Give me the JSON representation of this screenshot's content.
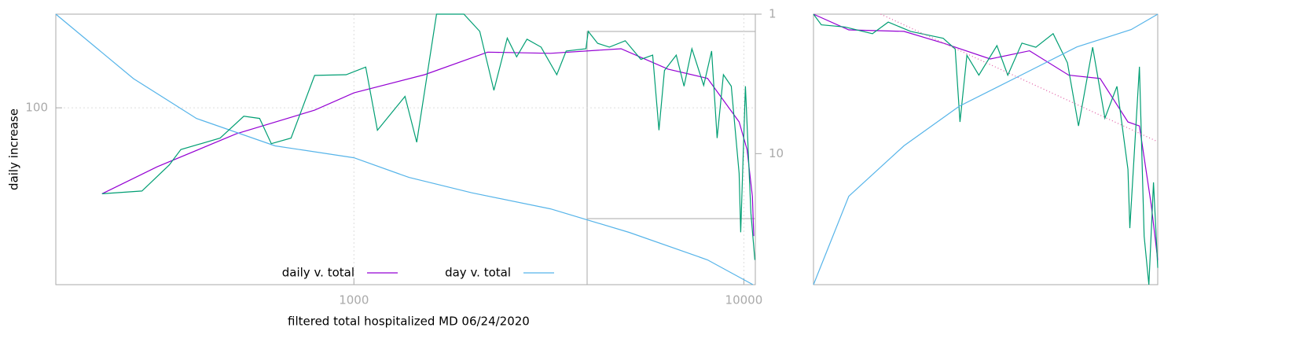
{
  "chart_data": [
    {
      "type": "line",
      "xlabel": "filtered total hospitalized MD 06/24/2020",
      "ylabel": "daily increase",
      "xscale": "log",
      "yscale": "log",
      "y2scale": "log",
      "xlim": [
        172,
        10700
      ],
      "ylim": [
        17.2,
        254
      ],
      "y2lim": [
        87,
        1
      ],
      "xticks": [
        1000,
        10000
      ],
      "yticks": [
        100
      ],
      "y2ticks": [
        1,
        10
      ],
      "grid": true,
      "legend": "bottom",
      "series": [
        {
          "name": "daily v. total",
          "color": "#9400d3",
          "x": [
            226,
            313,
            499,
            793,
            1000,
            1518,
            2202,
            3192,
            4842,
            6393,
            8070,
            9726,
            10190,
            10520,
            10600
          ],
          "values": [
            42.5,
            55.6,
            77.2,
            97.7,
            116,
            139,
            174,
            172,
            180,
            147,
            134,
            86.9,
            66.0,
            41.3,
            27.9
          ]
        },
        {
          "name": "day v. total",
          "color": "#56b4e9",
          "axis": "y2",
          "x": [
            172,
            272,
            395,
            628,
            1000,
            1384,
            2006,
            3192,
            5078,
            8070,
            10550
          ],
          "values": [
            1,
            2.9,
            5.6,
            8.8,
            10.7,
            14.8,
            19.1,
            24.9,
            36.7,
            57.8,
            87
          ]
        },
        {
          "color": "#009e73",
          "x": [
            226,
            286,
            336,
            360,
            454,
            522,
            573,
            614,
            690,
            793,
            955,
            1072,
            1149,
            1352,
            1449,
            1629,
            1914,
            2102,
            2286,
            2473,
            2614,
            2779,
            3020,
            3313,
            3501,
            3936,
            3990,
            4217,
            4519,
            4963,
            5445,
            5836,
            6056,
            6257,
            6708,
            7025,
            7356,
            7887,
            8265,
            8538,
            8864,
            9285,
            9726,
            9817,
            10092,
            10424,
            10670
          ],
          "values": [
            42.5,
            43.7,
            56.6,
            66,
            74,
            92,
            90,
            70,
            74,
            138,
            139,
            150,
            80,
            112,
            71,
            254,
            254,
            214,
            119,
            200,
            166,
            198,
            183,
            139,
            176,
            180,
            214,
            190,
            183,
            195,
            162,
            169,
            80,
            145,
            169,
            124,
            180,
            125,
            176,
            74,
            139,
            124,
            52,
            29,
            124,
            35,
            22
          ]
        }
      ]
    },
    {
      "type": "line",
      "xscale": "log",
      "yscale": "log",
      "y2scale": "log",
      "xlim": [
        3975,
        10700
      ],
      "ylim": [
        17.2,
        180
      ],
      "y2lim": [
        29.5,
        87
      ],
      "series": [
        {
          "color": "#9400d3",
          "x": [
            3975,
            4400,
            5156,
            5772,
            6610,
            7401,
            8284,
            9066,
            9822,
            10150,
            10500,
            10700
          ],
          "values": [
            180,
            157,
            155,
            140,
            122,
            131,
            106,
            103,
            70.6,
            68.2,
            34.4,
            21.3
          ]
        },
        {
          "color": "#009e73",
          "x": [
            3975,
            4066,
            4350,
            4709,
            4928,
            5257,
            5772,
            5975,
            6058,
            6180,
            6396,
            6737,
            6951,
            7239,
            7535,
            7919,
            8253,
            8520,
            8874,
            9192,
            9515,
            9822,
            9874,
            10150,
            10290,
            10430,
            10570,
            10700
          ],
          "values": [
            180,
            164,
            161,
            152,
            168,
            155,
            146,
            133,
            70.6,
            126,
            106,
            137,
            106,
            140,
            135,
            152,
            118,
            68.2,
            135,
            73.0,
            96.2,
            46.8,
            28.1,
            114,
            26.2,
            17.2,
            41.8,
            19.9
          ]
        },
        {
          "color": "#56b4e9",
          "axis": "y2",
          "x": [
            3975,
            4400,
            5156,
            6044,
            7239,
            8480,
            9913,
            10700
          ],
          "values": [
            29.5,
            42.0,
            51.4,
            60.2,
            68.3,
            76.3,
            81.8,
            87
          ]
        },
        {
          "color": "#e056a0",
          "dash": true,
          "x": [
            4823,
            10700
          ],
          "values": [
            180,
            59.5
          ]
        }
      ]
    }
  ]
}
